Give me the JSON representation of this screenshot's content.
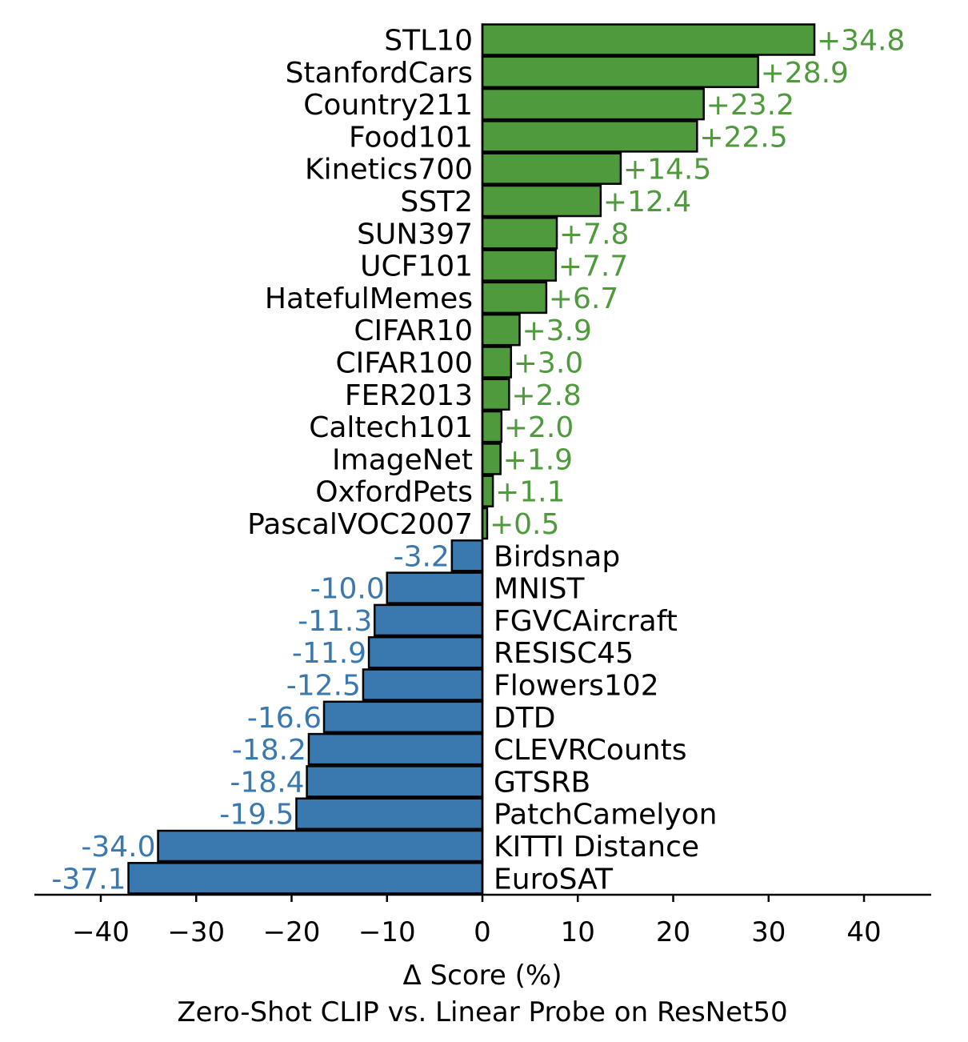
{
  "chart_data": {
    "type": "bar",
    "orientation": "horizontal",
    "categories": [
      "STL10",
      "StanfordCars",
      "Country211",
      "Food101",
      "Kinetics700",
      "SST2",
      "SUN397",
      "UCF101",
      "HatefulMemes",
      "CIFAR10",
      "CIFAR100",
      "FER2013",
      "Caltech101",
      "ImageNet",
      "OxfordPets",
      "PascalVOC2007",
      "Birdsnap",
      "MNIST",
      "FGVCAircraft",
      "RESISC45",
      "Flowers102",
      "DTD",
      "CLEVRCounts",
      "GTSRB",
      "PatchCamelyon",
      "KITTI Distance",
      "EuroSAT"
    ],
    "values": [
      34.8,
      28.9,
      23.2,
      22.5,
      14.5,
      12.4,
      7.8,
      7.7,
      6.7,
      3.9,
      3.0,
      2.8,
      2.0,
      1.9,
      1.1,
      0.5,
      -3.2,
      -10.0,
      -11.3,
      -11.9,
      -12.5,
      -16.6,
      -18.2,
      -18.4,
      -19.5,
      -34.0,
      -37.1
    ],
    "value_labels": [
      "+34.8",
      "+28.9",
      "+23.2",
      "+22.5",
      "+14.5",
      "+12.4",
      "+7.8",
      "+7.7",
      "+6.7",
      "+3.9",
      "+3.0",
      "+2.8",
      "+2.0",
      "+1.9",
      "+1.1",
      "+0.5",
      "-3.2",
      "-10.0",
      "-11.3",
      "-11.9",
      "-12.5",
      "-16.6",
      "-18.2",
      "-18.4",
      "-19.5",
      "-34.0",
      "-37.1"
    ],
    "xlim": [
      -47,
      47
    ],
    "xticks": [
      -40,
      -30,
      -20,
      -10,
      0,
      10,
      20,
      30,
      40
    ],
    "xtick_labels": [
      "−40",
      "−30",
      "−20",
      "−10",
      "0",
      "10",
      "20",
      "30",
      "40"
    ],
    "xlabel": "Δ Score (%)",
    "title": "Zero-Shot CLIP vs. Linear Probe on ResNet50",
    "colors": {
      "positive": "#4e9a3d",
      "negative": "#3a78b0",
      "edge": "#000000"
    }
  }
}
